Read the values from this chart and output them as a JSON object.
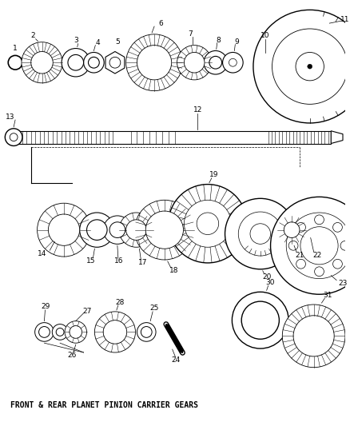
{
  "bg_color": "#ffffff",
  "line_color": "#000000",
  "fig_width": 4.38,
  "fig_height": 5.33,
  "caption": "FRONT & REAR PLANET PINION CARRIER GEARS"
}
